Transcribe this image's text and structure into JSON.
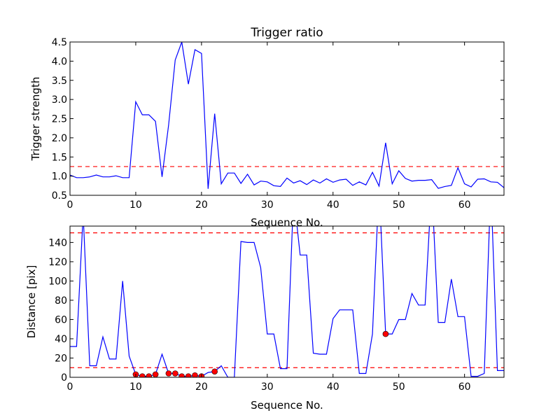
{
  "chart_data": [
    {
      "type": "line",
      "title": "Trigger ratio",
      "xlabel": "Sequence No.",
      "ylabel": "Trigger strength",
      "xlim": [
        0,
        66
      ],
      "ylim": [
        0.5,
        4.5
      ],
      "x_ticks": [
        0,
        10,
        20,
        30,
        40,
        50,
        60
      ],
      "x_tick_labels": [
        "0",
        "10",
        "20",
        "30",
        "40",
        "50",
        "60"
      ],
      "y_ticks": [
        0.5,
        1.0,
        1.5,
        2.0,
        2.5,
        3.0,
        3.5,
        4.0,
        4.5
      ],
      "y_tick_labels": [
        "0.5",
        "1.0",
        "1.5",
        "2.0",
        "2.5",
        "3.0",
        "3.5",
        "4.0",
        "4.5"
      ],
      "grid": false,
      "series": [
        {
          "color": "#0000ff",
          "x": [
            0,
            1,
            2,
            3,
            4,
            5,
            6,
            7,
            8,
            9,
            10,
            11,
            12,
            13,
            14,
            15,
            16,
            17,
            18,
            19,
            20,
            21,
            22,
            23,
            24,
            25,
            26,
            27,
            28,
            29,
            30,
            31,
            32,
            33,
            34,
            35,
            36,
            37,
            38,
            39,
            40,
            41,
            42,
            43,
            44,
            45,
            46,
            47,
            48,
            49,
            50,
            51,
            52,
            53,
            54,
            55,
            56,
            57,
            58,
            59,
            60,
            61,
            62,
            63,
            64,
            65,
            66
          ],
          "values": [
            1.03,
            0.96,
            0.96,
            0.98,
            1.03,
            0.98,
            0.98,
            1.01,
            0.96,
            0.96,
            2.94,
            2.6,
            2.6,
            2.43,
            0.98,
            2.34,
            4.03,
            4.5,
            3.4,
            4.3,
            4.2,
            0.67,
            2.63,
            0.8,
            1.08,
            1.08,
            0.81,
            1.05,
            0.77,
            0.87,
            0.85,
            0.75,
            0.73,
            0.95,
            0.82,
            0.88,
            0.78,
            0.9,
            0.82,
            0.93,
            0.84,
            0.9,
            0.92,
            0.76,
            0.85,
            0.77,
            1.1,
            0.74,
            1.87,
            0.8,
            1.14,
            0.94,
            0.87,
            0.89,
            0.89,
            0.91,
            0.68,
            0.73,
            0.76,
            1.22,
            0.8,
            0.72,
            0.92,
            0.93,
            0.85,
            0.84,
            0.7
          ]
        }
      ],
      "reference_lines": [
        {
          "y": 1.25,
          "color": "#ff0000",
          "style": "dashed"
        }
      ]
    },
    {
      "type": "line",
      "title": "",
      "xlabel": "Sequence No.",
      "ylabel": "Distance [pix]",
      "xlim": [
        0,
        66
      ],
      "ylim": [
        0,
        157
      ],
      "x_ticks": [
        0,
        10,
        20,
        30,
        40,
        50,
        60
      ],
      "x_tick_labels": [
        "0",
        "10",
        "20",
        "30",
        "40",
        "50",
        "60"
      ],
      "y_ticks": [
        0,
        20,
        40,
        60,
        80,
        100,
        120,
        140
      ],
      "y_tick_labels": [
        "0",
        "20",
        "40",
        "60",
        "80",
        "100",
        "120",
        "140"
      ],
      "grid": false,
      "series": [
        {
          "color": "#0000ff",
          "x": [
            0,
            1,
            2,
            3,
            4,
            5,
            6,
            7,
            8,
            9,
            10,
            11,
            12,
            13,
            14,
            15,
            16,
            17,
            18,
            19,
            20,
            21,
            22,
            23,
            24,
            25,
            26,
            27,
            28,
            29,
            30,
            31,
            32,
            33,
            34,
            35,
            36,
            37,
            38,
            39,
            40,
            41,
            42,
            43,
            44,
            45,
            46,
            47,
            48,
            49,
            50,
            51,
            52,
            53,
            54,
            55,
            56,
            57,
            58,
            59,
            60,
            61,
            62,
            63,
            64,
            65,
            66
          ],
          "values": [
            32,
            32,
            170,
            12,
            12,
            42,
            19,
            19,
            100,
            22,
            3,
            1,
            1,
            3,
            24,
            4,
            4,
            1,
            1,
            2,
            1,
            5,
            6,
            12,
            0,
            0,
            141,
            140,
            140,
            114,
            45,
            45,
            9,
            9,
            190,
            127,
            127,
            25,
            24,
            24,
            61,
            70,
            70,
            70,
            4,
            4,
            45,
            200,
            45,
            45,
            60,
            60,
            87,
            75,
            75,
            200,
            57,
            57,
            102,
            63,
            63,
            1,
            1,
            4,
            200,
            7,
            7
          ]
        }
      ],
      "markers": {
        "color": "#ff0000",
        "x": [
          10,
          11,
          12,
          13,
          15,
          16,
          17,
          18,
          19,
          20,
          22,
          48
        ],
        "y": [
          3,
          1,
          1,
          3,
          4,
          4,
          1,
          1,
          2,
          1,
          6,
          45
        ]
      },
      "reference_lines": [
        {
          "y": 10,
          "color": "#ff0000",
          "style": "dashed"
        },
        {
          "y": 150,
          "color": "#ff0000",
          "style": "dashed"
        }
      ]
    }
  ]
}
